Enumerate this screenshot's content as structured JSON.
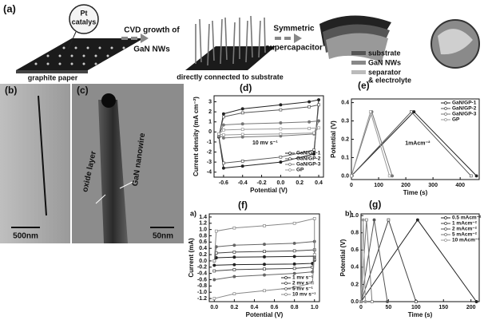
{
  "figure": {
    "panel_a": {
      "label": "(a)",
      "catalyst_1": "Pt",
      "catalyst_2": "catalys",
      "paper": "graphite paper",
      "step1_1": "CVD growth of",
      "step1_2": "GaN NWs",
      "result": "directly connected to substrate",
      "step2_1": "Symmetric",
      "step2_2": "supercapacitor",
      "layers": [
        "substrate",
        "GaN NWs",
        "separator",
        "& electrolyte"
      ]
    },
    "panel_b": {
      "label": "(b)",
      "scale": "500nm"
    },
    "panel_c": {
      "label": "(c)",
      "oxide": "oxide layer",
      "nanowire": "GaN nanowire",
      "scale": "50nm"
    }
  },
  "chart_data": [
    {
      "type": "line",
      "label": "(d)",
      "xlabel": "Potential (V)",
      "ylabel": "Current density (mA cm⁻²)",
      "annotation": "10 mv s⁻¹",
      "xlim": [
        -0.7,
        0.45
      ],
      "xticks": [
        -0.6,
        -0.4,
        -0.2,
        {
          "value": 0,
          "label": "0.0"
        },
        0.2,
        0.4
      ],
      "ylim": [
        -4.5,
        3.6
      ],
      "yticks": [
        -4,
        -3,
        -2,
        -1,
        0,
        1,
        2,
        3
      ],
      "legend": "lower right",
      "series": [
        {
          "name": "GaN/GP-1",
          "color": "#222",
          "x": [
            -0.65,
            -0.6,
            -0.4,
            0,
            0.3,
            0.4,
            0.35,
            0,
            -0.4,
            -0.6,
            -0.65
          ],
          "values": [
            -0.5,
            1.8,
            2.3,
            2.7,
            3.0,
            3.2,
            -2.2,
            -3.0,
            -3.4,
            -3.6,
            -0.5
          ]
        },
        {
          "name": "GaN/GP-2",
          "color": "#555",
          "x": [
            -0.65,
            -0.6,
            -0.4,
            0,
            0.3,
            0.4,
            0.35,
            0,
            -0.4,
            -0.6,
            -0.65
          ],
          "values": [
            -0.4,
            1.5,
            1.9,
            2.2,
            2.5,
            2.7,
            -1.8,
            -2.5,
            -2.9,
            -3.1,
            -0.4
          ]
        },
        {
          "name": "GaN/GP-3",
          "color": "#777",
          "x": [
            -0.65,
            -0.6,
            -0.4,
            0,
            0.3,
            0.4,
            0.35,
            0,
            -0.4,
            -0.6,
            -0.65
          ],
          "values": [
            -0.3,
            0.7,
            0.8,
            0.9,
            1.0,
            1.1,
            -0.2,
            -0.4,
            -0.5,
            -0.6,
            -0.3
          ]
        },
        {
          "name": "GP",
          "color": "#999",
          "x": [
            -0.65,
            -0.6,
            -0.4,
            0,
            0.3,
            0.4,
            0.35,
            0,
            -0.4,
            -0.6,
            -0.65
          ],
          "values": [
            -0.2,
            0.2,
            0.25,
            0.3,
            0.35,
            0.4,
            -0.1,
            -0.2,
            -0.25,
            -0.3,
            -0.2
          ]
        }
      ]
    },
    {
      "type": "line",
      "label": "(e)",
      "xlabel": "Time (s)",
      "ylabel": "Potential (V)",
      "annotation": "1mAcm⁻²",
      "xlim": [
        0,
        470
      ],
      "xticks": [
        0,
        100,
        200,
        300,
        400
      ],
      "ylim": [
        -0.02,
        0.42
      ],
      "yticks": [
        {
          "value": 0,
          "label": "0.0"
        },
        0.1,
        0.2,
        0.3,
        0.4
      ],
      "legend": "upper right",
      "series": [
        {
          "name": "GaN/GP-1",
          "color": "#222",
          "x": [
            0,
            230,
            460
          ],
          "values": [
            0,
            0.35,
            0
          ]
        },
        {
          "name": "GaN/GP-2",
          "color": "#555",
          "x": [
            0,
            220,
            440
          ],
          "values": [
            0,
            0.35,
            0
          ]
        },
        {
          "name": "GaN/GP-3",
          "color": "#777",
          "x": [
            0,
            75,
            150
          ],
          "values": [
            0,
            0.35,
            0
          ]
        },
        {
          "name": "GP",
          "color": "#999",
          "x": [
            0,
            70,
            140
          ],
          "values": [
            0,
            0.35,
            0
          ]
        }
      ]
    },
    {
      "type": "line",
      "label": "(f)",
      "sublabel": "a)",
      "xlabel": "Potential (V)",
      "ylabel": "Current (mA)",
      "xlim": [
        -0.05,
        1.05
      ],
      "xticks": [
        {
          "value": 0,
          "label": "0.0"
        },
        0.2,
        0.4,
        0.6,
        0.8,
        {
          "value": 1,
          "label": "1.0"
        }
      ],
      "ylim": [
        -1.3,
        1.5
      ],
      "yticks": [
        -1.2,
        {
          "value": -1,
          "label": "-1.0"
        },
        -0.8,
        -0.6,
        -0.4,
        -0.2,
        {
          "value": 0,
          "label": "0.0"
        },
        0.2,
        0.4,
        0.6,
        0.8,
        {
          "value": 1,
          "label": "1.0"
        },
        1.2,
        1.4
      ],
      "legend": "lower right",
      "series": [
        {
          "name": "1 mv s⁻¹",
          "color": "#222",
          "x": [
            0,
            0.02,
            0.2,
            0.5,
            0.8,
            1,
            1,
            0.98,
            0.8,
            0.5,
            0.2,
            0
          ],
          "values": [
            0,
            0.1,
            0.12,
            0.13,
            0.14,
            0.15,
            0.02,
            -0.08,
            -0.1,
            -0.11,
            -0.12,
            -0.14
          ]
        },
        {
          "name": "2 mv s⁻¹",
          "color": "#444",
          "x": [
            0,
            0.02,
            0.2,
            0.5,
            0.8,
            1,
            1,
            0.98,
            0.8,
            0.5,
            0.2,
            0
          ],
          "values": [
            0,
            0.25,
            0.28,
            0.3,
            0.32,
            0.35,
            0.05,
            -0.2,
            -0.24,
            -0.26,
            -0.28,
            -0.32
          ]
        },
        {
          "name": "5 mv s⁻¹",
          "color": "#666",
          "x": [
            0,
            0.02,
            0.2,
            0.5,
            0.8,
            1,
            1,
            0.98,
            0.8,
            0.5,
            0.2,
            0
          ],
          "values": [
            0,
            0.45,
            0.5,
            0.53,
            0.56,
            0.62,
            0.1,
            -0.35,
            -0.4,
            -0.45,
            -0.5,
            -0.6
          ]
        },
        {
          "name": "10 mv s⁻¹",
          "color": "#888",
          "x": [
            0,
            0.02,
            0.2,
            0.5,
            0.8,
            1,
            1,
            0.98,
            0.8,
            0.5,
            0.2,
            0
          ],
          "values": [
            0,
            0.95,
            1.05,
            1.12,
            1.2,
            1.35,
            0.2,
            -0.7,
            -0.85,
            -0.95,
            -1.05,
            -1.2
          ]
        }
      ]
    },
    {
      "type": "line",
      "label": "(g)",
      "sublabel": "b)",
      "xlabel": "Time (s)",
      "ylabel": "Potential (V)",
      "xlim": [
        0,
        215
      ],
      "xticks": [
        0,
        50,
        100,
        150,
        200
      ],
      "ylim": [
        0,
        1.02
      ],
      "yticks": [
        {
          "value": 0,
          "label": "0.0"
        },
        0.2,
        0.4,
        0.6,
        0.8,
        {
          "value": 1,
          "label": "1.0"
        }
      ],
      "legend": "upper right",
      "series": [
        {
          "name": "0.5 mAcm⁻²",
          "color": "#222",
          "x": [
            0,
            103,
            210
          ],
          "values": [
            0,
            0.95,
            0
          ]
        },
        {
          "name": "1 mAcm⁻²",
          "color": "#444",
          "x": [
            0,
            50,
            100
          ],
          "values": [
            0,
            0.95,
            0
          ]
        },
        {
          "name": "2 mAcm⁻²",
          "color": "#555",
          "x": [
            0,
            24,
            48
          ],
          "values": [
            0,
            0.95,
            0
          ]
        },
        {
          "name": "5 mAcm⁻²",
          "color": "#777",
          "x": [
            0,
            10,
            20
          ],
          "values": [
            0,
            0.95,
            0
          ]
        },
        {
          "name": "10 mAcm⁻²",
          "color": "#999",
          "x": [
            0,
            4,
            8
          ],
          "values": [
            0,
            0.95,
            0
          ]
        }
      ]
    }
  ]
}
